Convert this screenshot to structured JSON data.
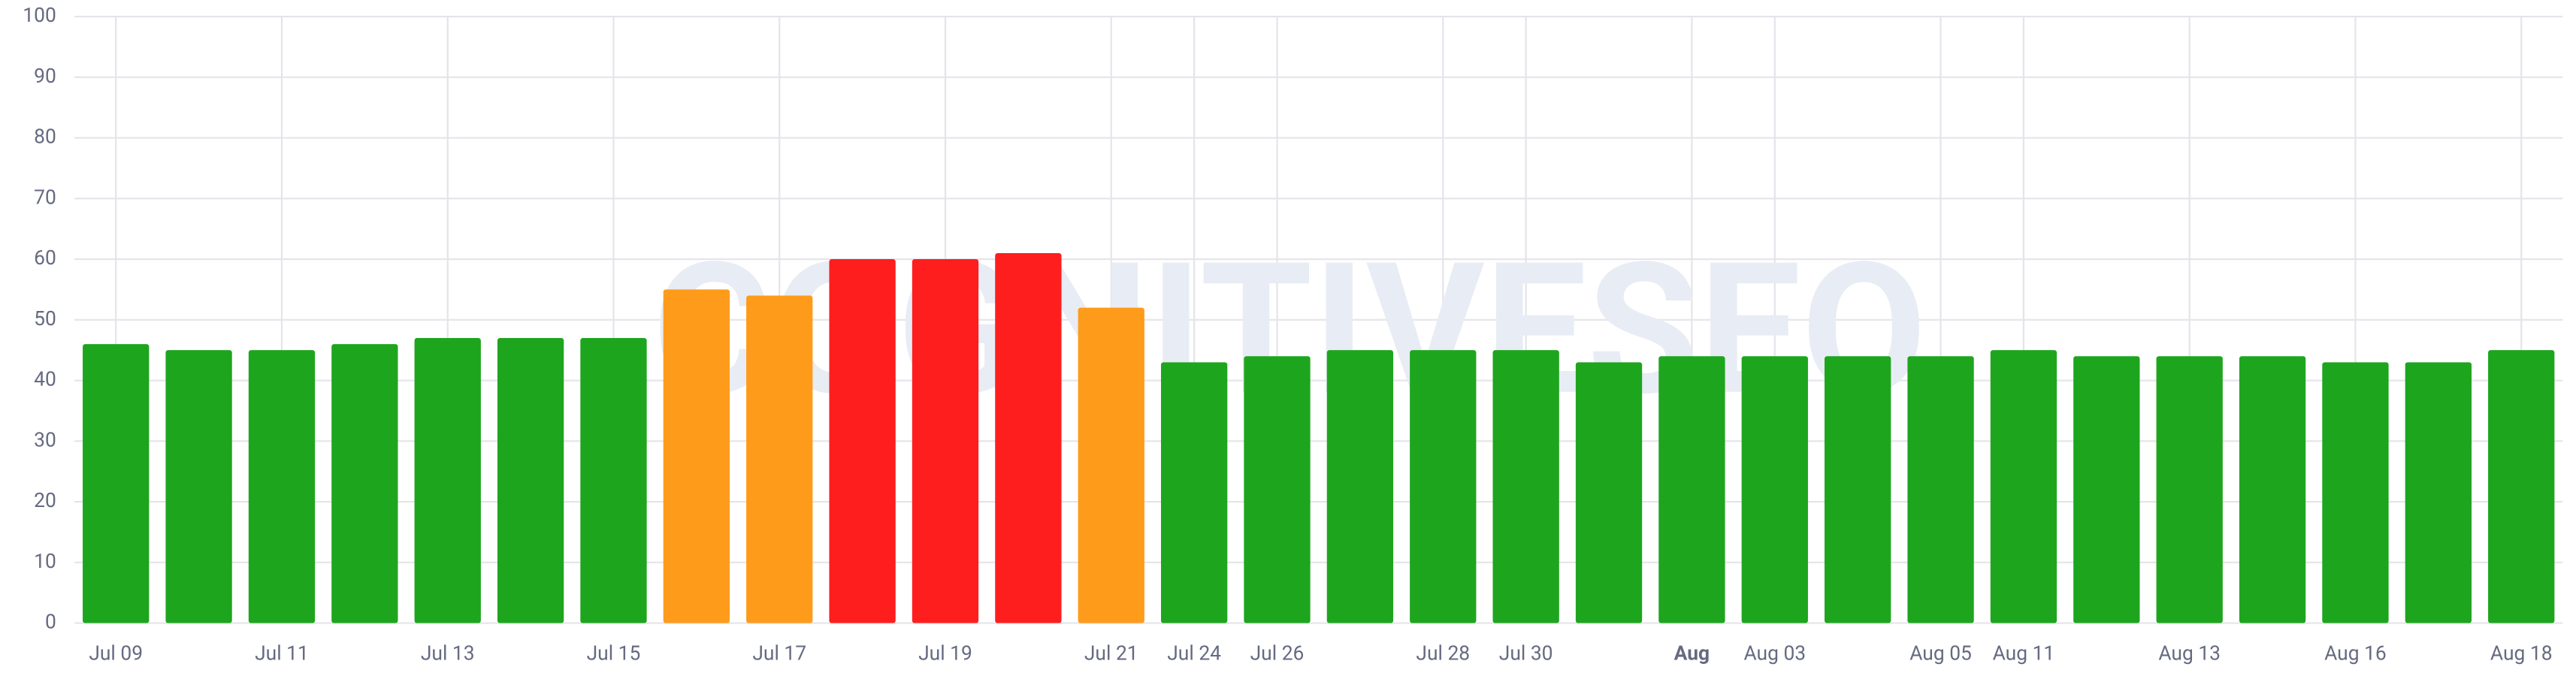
{
  "chart_data": {
    "type": "bar",
    "watermark": "COGNITIVESEO",
    "categories": [
      "Jul 09",
      null,
      "Jul 11",
      null,
      "Jul 13",
      null,
      "Jul 15",
      null,
      "Jul 17",
      null,
      "Jul 19",
      null,
      "Jul 21",
      "Jul 24",
      "Jul 26",
      null,
      "Jul 28",
      "Jul 30",
      null,
      "Aug",
      "Aug 03",
      null,
      "Aug 05",
      "Aug 11",
      null,
      "Aug 13",
      null,
      "Aug 16",
      null,
      "Aug 18"
    ],
    "values": [
      46,
      45,
      45,
      46,
      47,
      47,
      47,
      55,
      54,
      60,
      60,
      61,
      52,
      43,
      44,
      45,
      45,
      45,
      43,
      44,
      44,
      44,
      44,
      45,
      44,
      44,
      44,
      43,
      43,
      45
    ],
    "colors": [
      "#1ea51e",
      "#1ea51e",
      "#1ea51e",
      "#1ea51e",
      "#1ea51e",
      "#1ea51e",
      "#1ea51e",
      "#ff9b1a",
      "#ff9b1a",
      "#ff1e1e",
      "#ff1e1e",
      "#ff1e1e",
      "#ff9b1a",
      "#1ea51e",
      "#1ea51e",
      "#1ea51e",
      "#1ea51e",
      "#1ea51e",
      "#1ea51e",
      "#1ea51e",
      "#1ea51e",
      "#1ea51e",
      "#1ea51e",
      "#1ea51e",
      "#1ea51e",
      "#1ea51e",
      "#1ea51e",
      "#1ea51e",
      "#1ea51e",
      "#1ea51e"
    ],
    "ylim": [
      0,
      100
    ],
    "yticks": [
      0,
      10,
      20,
      30,
      40,
      50,
      60,
      70,
      80,
      90,
      100
    ],
    "grid": true
  }
}
